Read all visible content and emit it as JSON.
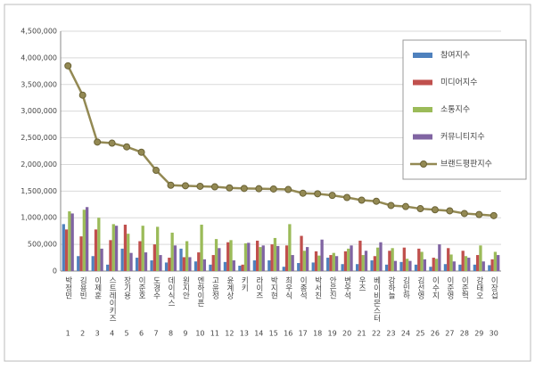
{
  "chart_data": {
    "type": "bar",
    "ranks": [
      1,
      2,
      3,
      4,
      5,
      6,
      7,
      8,
      9,
      10,
      11,
      12,
      13,
      14,
      15,
      16,
      17,
      18,
      19,
      20,
      21,
      22,
      23,
      24,
      25,
      26,
      27,
      28,
      29,
      30
    ],
    "categories": [
      "박정민",
      "김용빈",
      "이제훈",
      "스트레이키즈",
      "장기용",
      "이준호",
      "도경수",
      "데이식스",
      "원지안",
      "엔하이픈",
      "고윤정",
      "윤계상",
      "키키",
      "라이즈",
      "박지현",
      "최우식",
      "이종석",
      "박서진",
      "안은진",
      "변우석",
      "우즈",
      "베이비몬스터",
      "강하늘",
      "김민하",
      "김선영",
      "이수지",
      "이준영",
      "이준혁",
      "강태오",
      "이장섭"
    ],
    "series": [
      {
        "name": "참여지수",
        "type": "bar",
        "color": "#4f81bd",
        "values": [
          880000,
          280000,
          280000,
          120000,
          420000,
          250000,
          200000,
          160000,
          420000,
          180000,
          120000,
          170000,
          100000,
          200000,
          200000,
          80000,
          150000,
          160000,
          250000,
          130000,
          130000,
          200000,
          120000,
          170000,
          120000,
          80000,
          130000,
          120000,
          120000,
          110000
        ]
      },
      {
        "name": "미디어지수",
        "type": "bar",
        "color": "#c0504d",
        "values": [
          780000,
          650000,
          780000,
          580000,
          870000,
          560000,
          500000,
          250000,
          260000,
          350000,
          300000,
          540000,
          120000,
          570000,
          500000,
          480000,
          660000,
          370000,
          300000,
          370000,
          570000,
          280000,
          380000,
          440000,
          420000,
          250000,
          430000,
          380000,
          300000,
          220000
        ]
      },
      {
        "name": "소통지수",
        "type": "bar",
        "color": "#9bbb59",
        "values": [
          1120000,
          1150000,
          1000000,
          880000,
          700000,
          850000,
          830000,
          720000,
          560000,
          870000,
          600000,
          580000,
          520000,
          450000,
          620000,
          880000,
          380000,
          290000,
          340000,
          420000,
          300000,
          440000,
          430000,
          230000,
          360000,
          230000,
          310000,
          280000,
          480000,
          360000
        ]
      },
      {
        "name": "커뮤니티지수",
        "type": "bar",
        "color": "#8064a2",
        "values": [
          1080000,
          1200000,
          420000,
          850000,
          340000,
          350000,
          300000,
          480000,
          260000,
          220000,
          430000,
          200000,
          530000,
          480000,
          470000,
          300000,
          450000,
          590000,
          280000,
          480000,
          380000,
          540000,
          190000,
          190000,
          220000,
          500000,
          180000,
          250000,
          180000,
          300000
        ]
      },
      {
        "name": "브랜드평판지수",
        "type": "line",
        "color": "#938953",
        "values": [
          3850000,
          3300000,
          2420000,
          2400000,
          2330000,
          2230000,
          1890000,
          1610000,
          1600000,
          1590000,
          1580000,
          1560000,
          1550000,
          1545000,
          1540000,
          1530000,
          1460000,
          1450000,
          1420000,
          1380000,
          1330000,
          1310000,
          1230000,
          1210000,
          1170000,
          1150000,
          1130000,
          1080000,
          1060000,
          1040000
        ]
      }
    ],
    "ylim": [
      0,
      4500000
    ],
    "yticks": [
      0,
      {
        "value": 500000,
        "label": "500,000"
      },
      {
        "value": 1000000,
        "label": "1,000,000"
      },
      {
        "value": 1500000,
        "label": "1,500,000"
      },
      {
        "value": 2000000,
        "label": "2,000,000"
      },
      {
        "value": 2500000,
        "label": "2,500,000"
      },
      {
        "value": 3000000,
        "label": "3,000,000"
      },
      {
        "value": 3500000,
        "label": "3,500,000"
      },
      {
        "value": 4000000,
        "label": "4,000,000"
      },
      {
        "value": 4500000,
        "label": "4,500,000"
      }
    ],
    "grid": true
  }
}
